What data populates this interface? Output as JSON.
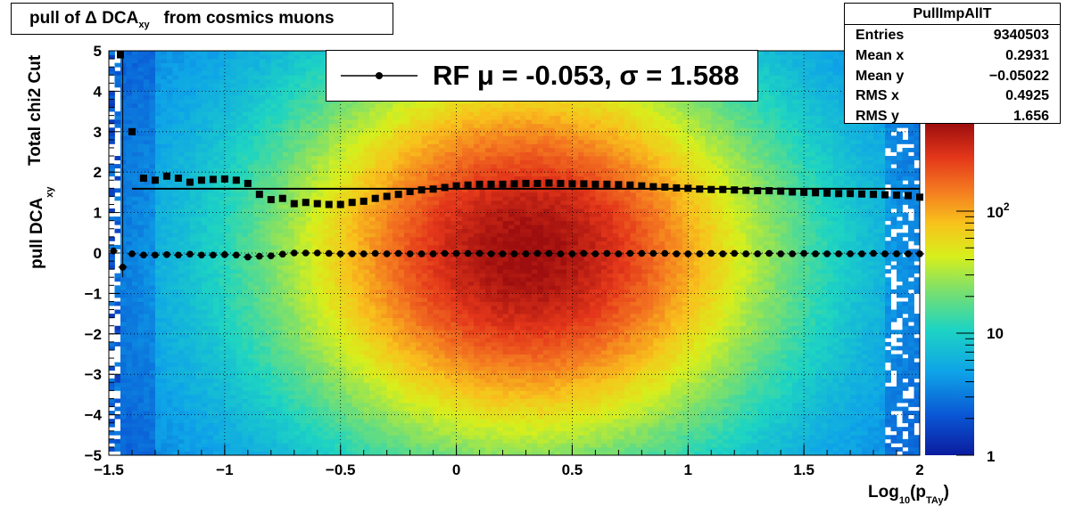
{
  "title": {
    "text": "pull of Δ DCA",
    "sub": "xy",
    "suffix": "from cosmics muons"
  },
  "stats": {
    "name": "PullImpAllT",
    "rows": [
      {
        "label": "Entries",
        "value": "9340503"
      },
      {
        "label": "Mean x",
        "value": "0.2931"
      },
      {
        "label": "Mean y",
        "value": "−0.05022"
      },
      {
        "label": "RMS x",
        "value": "0.4925"
      },
      {
        "label": "RMS y",
        "value": "1.656"
      }
    ]
  },
  "legend": {
    "text": "RF μ = -0.053, σ =   1.588"
  },
  "colors": {
    "stats_border": "#000000",
    "fit_line": "#000000"
  },
  "chart_data": {
    "type": "heatmap",
    "xlabel": {
      "main": "Log",
      "sub1": "10",
      "mid": "(p",
      "sub2": "TAy",
      "end": ")"
    },
    "ylabel": {
      "main": "pull DCA",
      "sub": "xy"
    },
    "ylabel2": "Total chi2 Cut",
    "xlim": [
      -1.5,
      2
    ],
    "ylim": [
      -5,
      5
    ],
    "x_ticks": [
      "−1.5",
      "−1",
      "−0.5",
      "0",
      "0.5",
      "1",
      "1.5",
      "2"
    ],
    "y_ticks": [
      "−5",
      "−4",
      "−3",
      "−2",
      "−1",
      "0",
      "1",
      "2",
      "3",
      "4",
      "5"
    ],
    "z_scale": "log",
    "z_ticks": [
      "1",
      "10",
      "10^2"
    ],
    "grid": true,
    "series": [
      {
        "name": "RF",
        "marker": "circle",
        "x": [
          -1.48,
          -1.44,
          -1.4,
          -1.35,
          -1.3,
          -1.25,
          -1.2,
          -1.15,
          -1.1,
          -1.05,
          -1.0,
          -0.95,
          -0.9,
          -0.85,
          -0.8,
          -0.75,
          -0.7,
          -0.65,
          -0.6,
          -0.55,
          -0.5,
          -0.45,
          -0.4,
          -0.35,
          -0.3,
          -0.25,
          -0.2,
          -0.15,
          -0.1,
          -0.05,
          0.0,
          0.05,
          0.1,
          0.15,
          0.2,
          0.25,
          0.3,
          0.35,
          0.4,
          0.45,
          0.5,
          0.55,
          0.6,
          0.65,
          0.7,
          0.75,
          0.8,
          0.85,
          0.9,
          0.95,
          1.0,
          1.05,
          1.1,
          1.15,
          1.2,
          1.25,
          1.3,
          1.35,
          1.4,
          1.45,
          1.5,
          1.55,
          1.6,
          1.65,
          1.7,
          1.75,
          1.8,
          1.85,
          1.9,
          1.95,
          2.0
        ],
        "y": [
          0.05,
          -0.35,
          -0.02,
          -0.05,
          -0.05,
          -0.04,
          -0.05,
          -0.03,
          -0.05,
          -0.05,
          -0.04,
          -0.05,
          -0.1,
          -0.08,
          -0.07,
          -0.03,
          0.0,
          0.0,
          0.0,
          -0.01,
          -0.02,
          -0.02,
          -0.02,
          -0.01,
          -0.02,
          -0.01,
          -0.02,
          -0.02,
          -0.02,
          -0.01,
          -0.01,
          -0.01,
          -0.01,
          -0.02,
          -0.02,
          -0.02,
          -0.02,
          -0.01,
          -0.01,
          -0.02,
          -0.02,
          -0.01,
          -0.02,
          -0.01,
          -0.02,
          -0.01,
          -0.01,
          -0.01,
          -0.01,
          -0.02,
          -0.02,
          -0.02,
          -0.01,
          -0.02,
          -0.01,
          -0.02,
          -0.02,
          -0.01,
          -0.02,
          -0.02,
          -0.01,
          -0.02,
          -0.02,
          -0.02,
          -0.02,
          -0.02,
          -0.01,
          -0.02,
          -0.02,
          -0.02,
          -0.02
        ]
      },
      {
        "name": "RF",
        "marker": "square",
        "x": [
          -1.45,
          -1.4,
          -1.35,
          -1.3,
          -1.25,
          -1.2,
          -1.15,
          -1.1,
          -1.05,
          -1.0,
          -0.95,
          -0.9,
          -0.85,
          -0.8,
          -0.75,
          -0.7,
          -0.65,
          -0.6,
          -0.55,
          -0.5,
          -0.45,
          -0.4,
          -0.35,
          -0.3,
          -0.25,
          -0.2,
          -0.15,
          -0.1,
          -0.05,
          0.0,
          0.05,
          0.1,
          0.15,
          0.2,
          0.25,
          0.3,
          0.35,
          0.4,
          0.45,
          0.5,
          0.55,
          0.6,
          0.65,
          0.7,
          0.75,
          0.8,
          0.85,
          0.9,
          0.95,
          1.0,
          1.05,
          1.1,
          1.15,
          1.2,
          1.25,
          1.3,
          1.35,
          1.4,
          1.45,
          1.5,
          1.55,
          1.6,
          1.65,
          1.7,
          1.75,
          1.8,
          1.85,
          1.9,
          1.95,
          2.0
        ],
        "y": [
          4.9,
          3.0,
          1.85,
          1.8,
          1.9,
          1.85,
          1.75,
          1.8,
          1.82,
          1.83,
          1.8,
          1.72,
          1.45,
          1.32,
          1.35,
          1.22,
          1.25,
          1.22,
          1.2,
          1.2,
          1.25,
          1.28,
          1.35,
          1.4,
          1.45,
          1.52,
          1.56,
          1.58,
          1.62,
          1.66,
          1.68,
          1.7,
          1.7,
          1.7,
          1.71,
          1.72,
          1.72,
          1.73,
          1.72,
          1.71,
          1.71,
          1.7,
          1.7,
          1.69,
          1.68,
          1.66,
          1.64,
          1.63,
          1.61,
          1.6,
          1.58,
          1.57,
          1.57,
          1.56,
          1.55,
          1.54,
          1.54,
          1.53,
          1.51,
          1.5,
          1.49,
          1.48,
          1.47,
          1.47,
          1.46,
          1.45,
          1.44,
          1.43,
          1.42,
          1.38
        ]
      },
      {
        "name": "fit",
        "type": "line",
        "x": [
          -1.4,
          2.0
        ],
        "y": [
          1.588,
          1.588
        ]
      }
    ]
  }
}
